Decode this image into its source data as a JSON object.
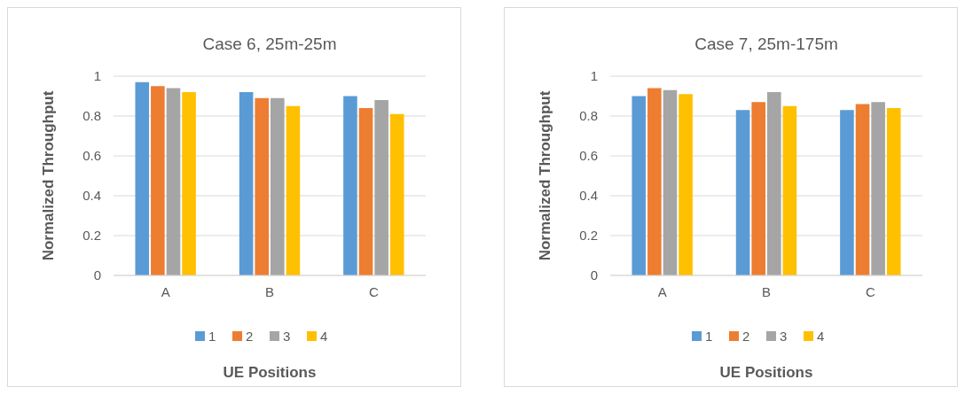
{
  "chart_data": [
    {
      "type": "bar",
      "title": "Case 6, 25m-25m",
      "xlabel": "UE Positions",
      "ylabel": "Normalized Throughput",
      "categories": [
        "A",
        "B",
        "C"
      ],
      "series": [
        {
          "name": "1",
          "color": "#5b9bd5",
          "values": [
            0.97,
            0.92,
            0.9
          ]
        },
        {
          "name": "2",
          "color": "#ed7d31",
          "values": [
            0.95,
            0.89,
            0.84
          ]
        },
        {
          "name": "3",
          "color": "#a5a5a5",
          "values": [
            0.94,
            0.89,
            0.88
          ]
        },
        {
          "name": "4",
          "color": "#ffc000",
          "values": [
            0.92,
            0.85,
            0.81
          ]
        }
      ],
      "ylim": [
        0,
        1
      ],
      "yticks": [
        0,
        0.2,
        0.4,
        0.6,
        0.8,
        1
      ],
      "grid": "y",
      "legend": "bottom"
    },
    {
      "type": "bar",
      "title": "Case 7, 25m-175m",
      "xlabel": "UE Positions",
      "ylabel": "Normalized Throughput",
      "categories": [
        "A",
        "B",
        "C"
      ],
      "series": [
        {
          "name": "1",
          "color": "#5b9bd5",
          "values": [
            0.9,
            0.83,
            0.83
          ]
        },
        {
          "name": "2",
          "color": "#ed7d31",
          "values": [
            0.94,
            0.87,
            0.86
          ]
        },
        {
          "name": "3",
          "color": "#a5a5a5",
          "values": [
            0.93,
            0.92,
            0.87
          ]
        },
        {
          "name": "4",
          "color": "#ffc000",
          "values": [
            0.91,
            0.85,
            0.84
          ]
        }
      ],
      "ylim": [
        0,
        1
      ],
      "yticks": [
        0,
        0.2,
        0.4,
        0.6,
        0.8,
        1
      ],
      "grid": "y",
      "legend": "bottom"
    }
  ]
}
